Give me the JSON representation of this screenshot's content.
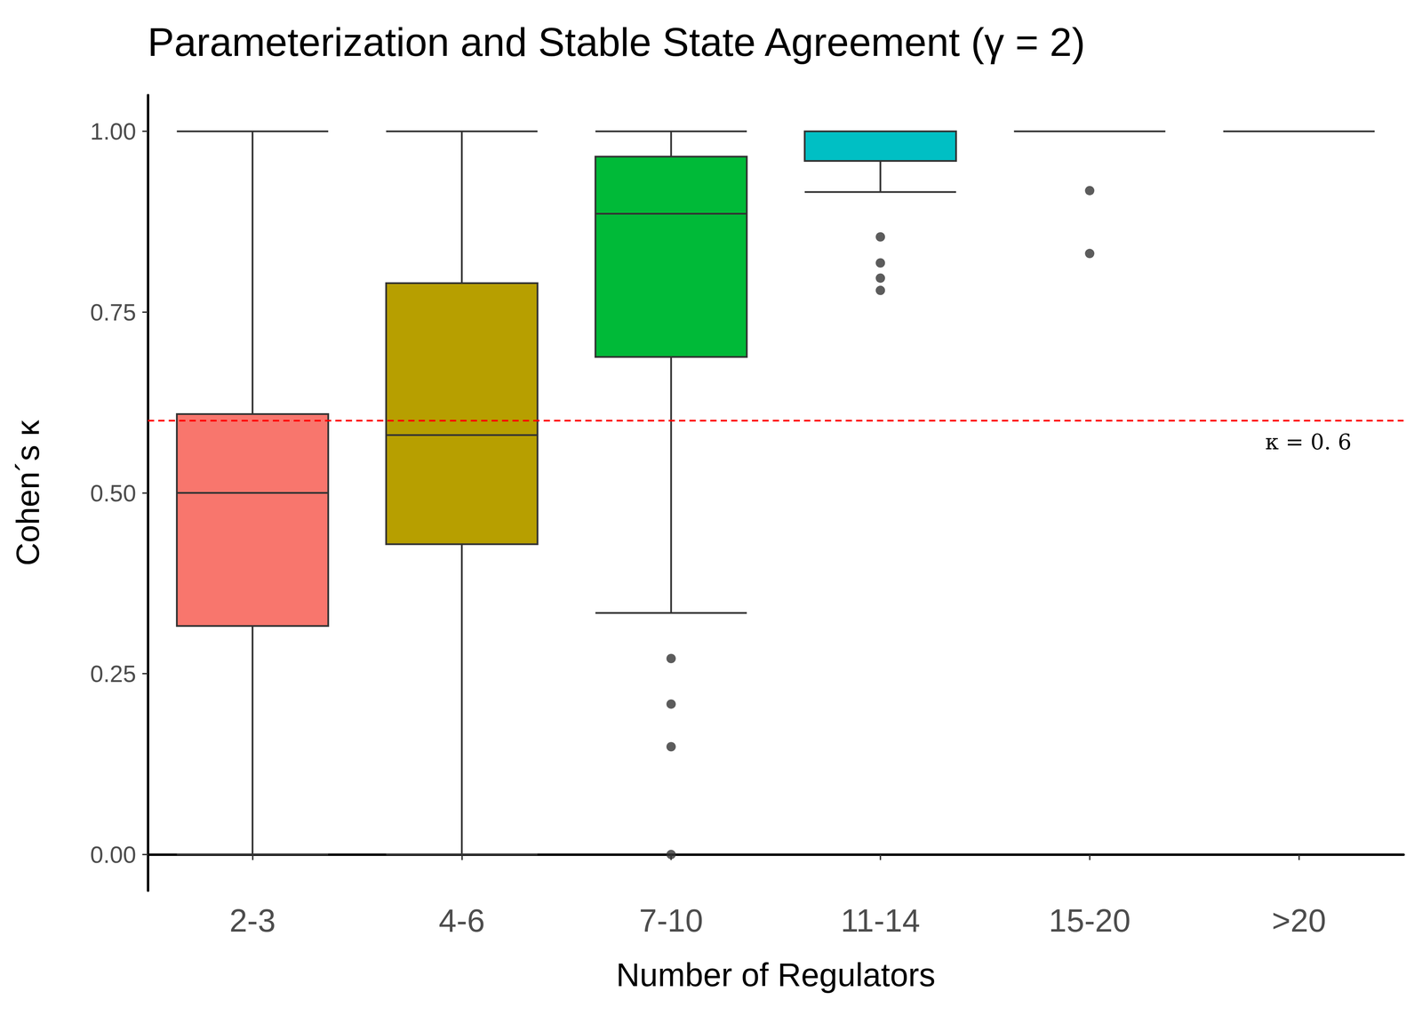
{
  "chart_data": {
    "type": "boxplot",
    "title": "Parameterization and Stable State Agreement (γ = 2)",
    "x_label": "Number of Regulators",
    "y_label": "Cohen´s κ",
    "categories": [
      "2-3",
      "4-6",
      "7-10",
      "11-14",
      "15-20",
      ">20"
    ],
    "min": [
      0.0,
      0.0,
      0.334,
      0.916,
      1.0,
      1.0
    ],
    "q1": [
      0.316,
      0.429,
      0.688,
      0.959,
      1.0,
      1.0
    ],
    "median": [
      0.5,
      0.58,
      0.886,
      1.0,
      1.0,
      1.0
    ],
    "q3": [
      0.609,
      0.79,
      0.965,
      1.0,
      1.0,
      1.0
    ],
    "max": [
      1.0,
      1.0,
      1.0,
      1.0,
      1.0,
      1.0
    ],
    "outliers": [
      [],
      [],
      [
        0.271,
        0.208,
        0.149,
        0.0
      ],
      [
        0.854,
        0.818,
        0.797,
        0.78
      ],
      [
        0.918,
        0.831
      ],
      []
    ],
    "colors": [
      "#F8766D",
      "#B79F00",
      "#00BA38",
      "#00BFC4",
      "#619CFF",
      "#F564E3"
    ],
    "ylim": [
      -0.05,
      1.05
    ],
    "yticks": [
      {
        "value": 0,
        "label": "0.00"
      },
      {
        "value": 0.25,
        "label": "0.25"
      },
      {
        "value": 0.5,
        "label": "0.50"
      },
      {
        "value": 0.75,
        "label": "0.75"
      },
      {
        "value": 1,
        "label": "1.00"
      }
    ],
    "grid": false,
    "annotations": [
      {
        "type": "hline",
        "value": 0.6,
        "label": "κ = 0. 6",
        "color": "#FF0000",
        "line_style": "dashed"
      }
    ]
  }
}
